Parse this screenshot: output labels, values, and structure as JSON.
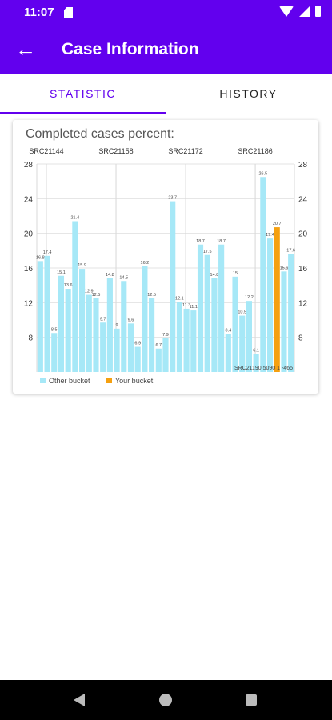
{
  "status_bar": {
    "time": "11:07"
  },
  "app_bar": {
    "title": "Case Information"
  },
  "tabs": [
    {
      "label": "STATISTIC",
      "active": true
    },
    {
      "label": "HISTORY",
      "active": false
    }
  ],
  "colors": {
    "primary": "#6200ee",
    "other_bucket": "#a6e8f7",
    "your_bucket": "#f5a010"
  },
  "chart_data": {
    "type": "bar",
    "title": "Completed cases percent:",
    "top_category_labels": [
      "SRC21144",
      "SRC21158",
      "SRC21172",
      "SRC21186"
    ],
    "y_ticks": [
      8,
      12,
      16,
      20,
      24,
      28
    ],
    "ylim": [
      4,
      28
    ],
    "grid": true,
    "legend_position": "bottom-left",
    "series": [
      {
        "name": "Other bucket",
        "color": "#a6e8f7"
      },
      {
        "name": "Your bucket",
        "color": "#f5a010"
      }
    ],
    "values": [
      16.8,
      17.4,
      8.5,
      15.1,
      13.6,
      21.4,
      15.9,
      12.9,
      12.5,
      9.7,
      14.8,
      9.0,
      14.5,
      9.6,
      6.9,
      16.2,
      12.5,
      6.7,
      7.9,
      23.7,
      12.1,
      11.3,
      11.1,
      18.7,
      17.5,
      14.8,
      18.7,
      8.4,
      15.0,
      10.5,
      12.2,
      6.1,
      26.5,
      19.4,
      20.7,
      15.6,
      17.6
    ],
    "highlight_index": 34,
    "overlay_label": "SRC21190 5090 1 -465"
  }
}
